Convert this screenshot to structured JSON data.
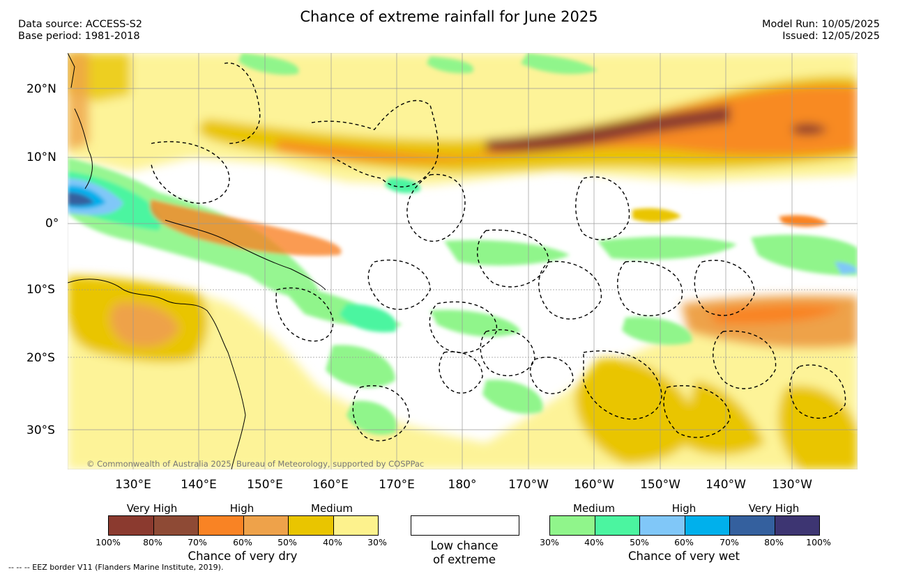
{
  "title": "Chance of extreme rainfall for June 2025",
  "header_left": {
    "data_source": "Data source: ACCESS-S2",
    "base_period": "Base period: 1981-2018"
  },
  "header_right": {
    "model_run": "Model Run: 10/05/2025",
    "issued": "Issued: 12/05/2025"
  },
  "map": {
    "lat_labels": [
      "20°N",
      "10°N",
      "0°",
      "10°S",
      "20°S",
      "30°S"
    ],
    "lon_labels": [
      "130°E",
      "140°E",
      "150°E",
      "160°E",
      "170°E",
      "180°",
      "170°W",
      "160°W",
      "150°W",
      "140°W",
      "130°W"
    ],
    "copyright": "© Commonwealth of Australia 2025, Bureau of Meteorology, supported by COSPPac"
  },
  "dry_legend": {
    "categories": [
      "Very High",
      "High",
      "Medium"
    ],
    "colors": [
      "#8b3a2f",
      "#8e4a35",
      "#f98324",
      "#eea24a",
      "#e9c500",
      "#fdf28d"
    ],
    "ticks": [
      "100%",
      "80%",
      "70%",
      "60%",
      "50%",
      "40%",
      "30%"
    ],
    "title": "Chance of very dry"
  },
  "low_legend": {
    "line1": "Low chance",
    "line2": "of extreme"
  },
  "wet_legend": {
    "categories": [
      "Medium",
      "High",
      "Very High"
    ],
    "colors": [
      "#90f58b",
      "#4bf5a0",
      "#80c7f8",
      "#00b0ec",
      "#34609e",
      "#3d3572"
    ],
    "ticks": [
      "30%",
      "40%",
      "50%",
      "60%",
      "70%",
      "80%",
      "100%"
    ],
    "title": "Chance of very wet"
  },
  "footnote": "--  --  -- EEZ border V11 (Flanders Marine Institute, 2019)."
}
